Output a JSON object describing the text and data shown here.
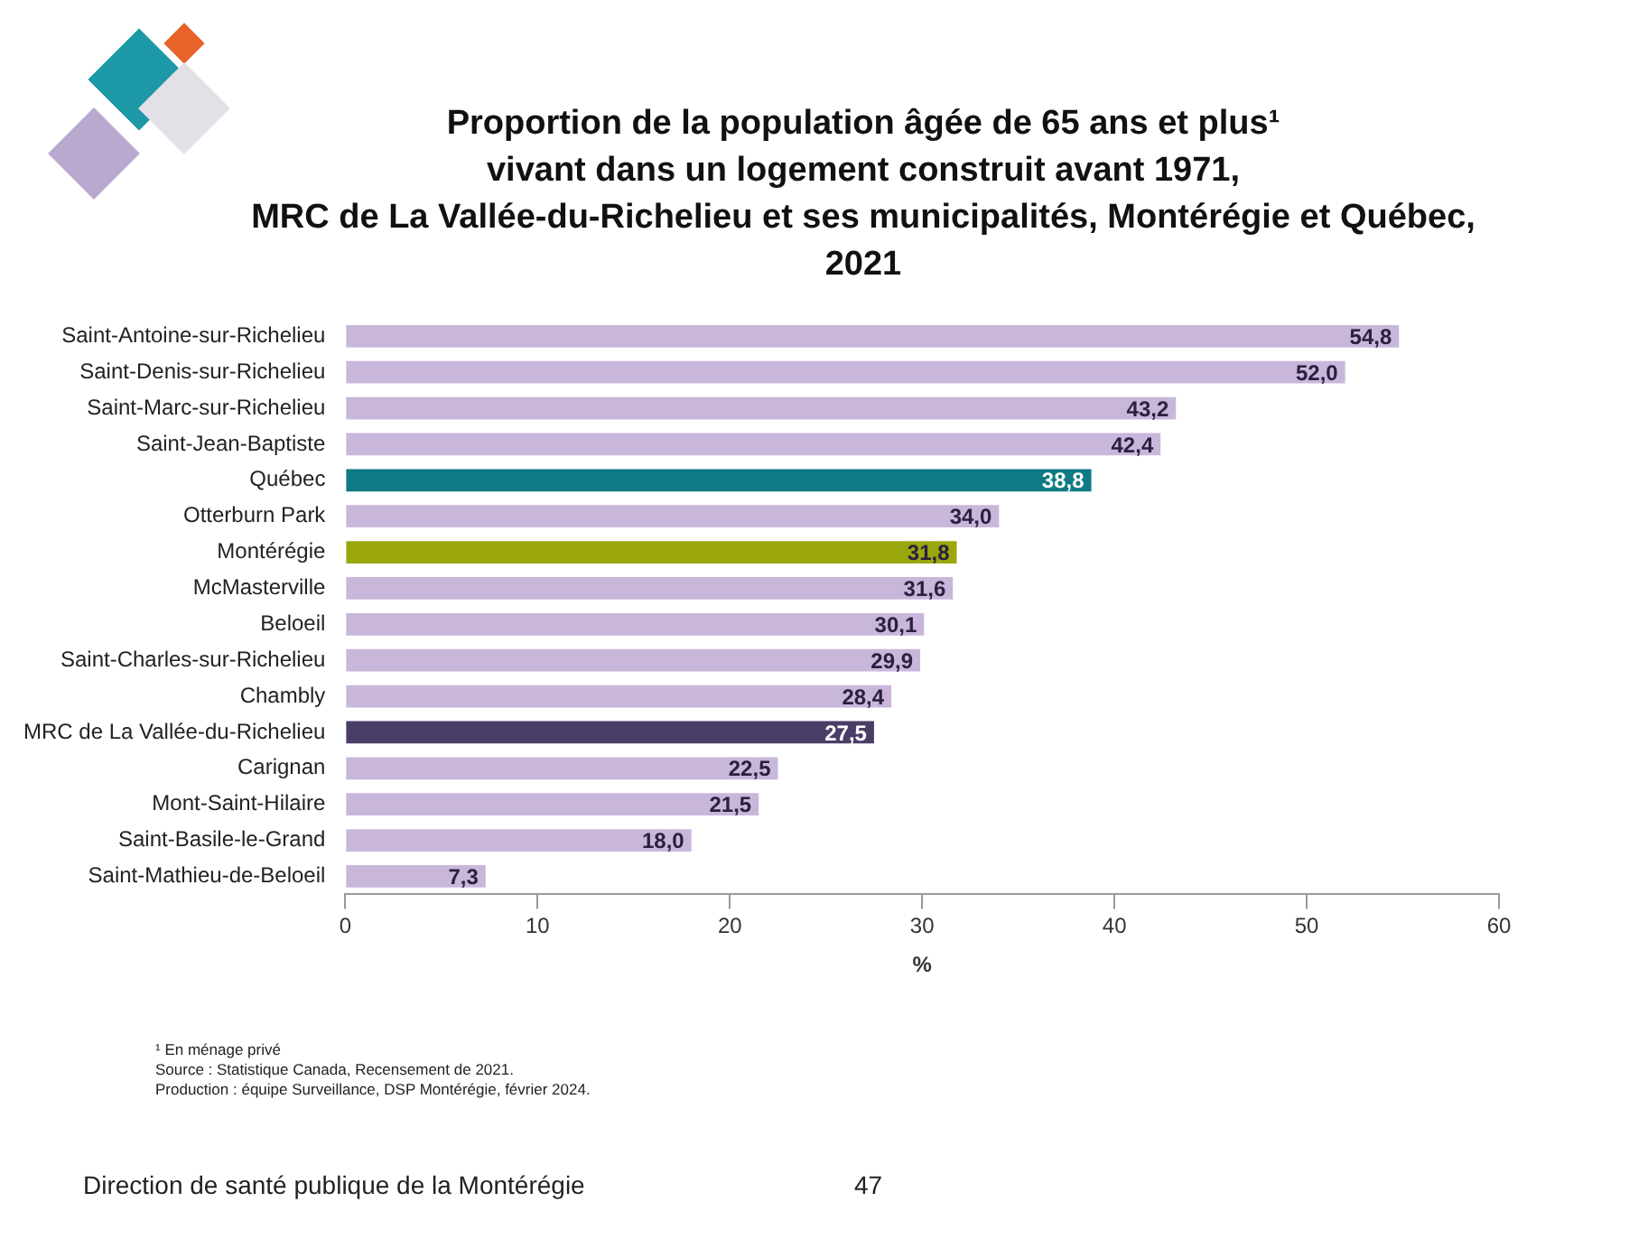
{
  "chart_data": {
    "type": "bar",
    "orientation": "horizontal",
    "title": "Proportion de la population âgée de 65 ans et plus¹\nvivant dans un logement construit avant 1971,\nMRC de La Vallée-du-Richelieu et ses municipalités, Montérégie et Québec, 2021",
    "xlabel": "%",
    "categories": [
      "Saint-Antoine-sur-Richelieu",
      "Saint-Denis-sur-Richelieu",
      "Saint-Marc-sur-Richelieu",
      "Saint-Jean-Baptiste",
      "Québec",
      "Otterburn Park",
      "Montérégie",
      "McMasterville",
      "Beloeil",
      "Saint-Charles-sur-Richelieu",
      "Chambly",
      "MRC de La Vallée-du-Richelieu",
      "Carignan",
      "Mont-Saint-Hilaire",
      "Saint-Basile-le-Grand",
      "Saint-Mathieu-de-Beloeil"
    ],
    "values": [
      54.8,
      52.0,
      43.2,
      42.4,
      38.8,
      34.0,
      31.8,
      31.6,
      30.1,
      29.9,
      28.4,
      27.5,
      22.5,
      21.5,
      18.0,
      7.3
    ],
    "value_labels": [
      "54,8",
      "52,0",
      "43,2",
      "42,4",
      "38,8",
      "34,0",
      "31,8",
      "31,6",
      "30,1",
      "29,9",
      "28,4",
      "27,5",
      "22,5",
      "21,5",
      "18,0",
      "7,3"
    ],
    "colors": [
      "#c8b7db",
      "#c8b7db",
      "#c8b7db",
      "#c8b7db",
      "#0f7a84",
      "#c8b7db",
      "#9aa70c",
      "#c8b7db",
      "#c8b7db",
      "#c8b7db",
      "#c8b7db",
      "#4b3e66",
      "#c8b7db",
      "#c8b7db",
      "#c8b7db",
      "#c8b7db"
    ],
    "xlim": [
      0,
      60
    ],
    "xticks": [
      0,
      10,
      20,
      30,
      40,
      50,
      60
    ],
    "grid": false,
    "legend": false,
    "annotations": [
      "¹ En ménage privé",
      "Source : Statistique Canada, Recensement de 2021.",
      "Production : équipe Surveillance, DSP Montérégie, février 2024.",
      "Direction de santé publique de la Montérégie",
      "47"
    ]
  }
}
